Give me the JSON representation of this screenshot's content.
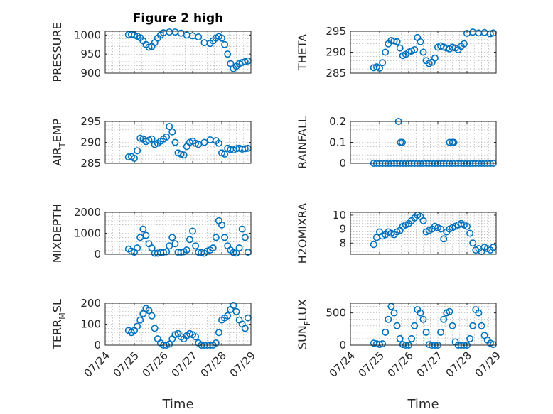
{
  "figure": {
    "title": "Figure 2 high",
    "x_label": "Time",
    "x_ticks": [
      "07/24",
      "07/25",
      "07/26",
      "07/27",
      "07/28",
      "07/29"
    ],
    "marker_color": "#0072BD"
  },
  "chart_data": [
    {
      "type": "scatter",
      "title": "Figure 2 high",
      "ylabel": "PRESSURE",
      "xlabel": "",
      "ylim": [
        900,
        1010
      ],
      "yticks": [
        900,
        950,
        1000
      ],
      "grid": true,
      "x_days": [
        0.8,
        0.9,
        1.0,
        1.1,
        1.2,
        1.3,
        1.4,
        1.5,
        1.6,
        1.7,
        1.8,
        1.9,
        2.0,
        2.2,
        2.4,
        2.6,
        2.8,
        3.0,
        3.2,
        3.4,
        3.6,
        3.7,
        3.8,
        3.9,
        4.0,
        4.1,
        4.2,
        4.3,
        4.4,
        4.5,
        4.6,
        4.7,
        4.8,
        4.9
      ],
      "y": [
        1001,
        1001,
        1000,
        997,
        993,
        985,
        975,
        968,
        970,
        980,
        992,
        1000,
        1006,
        1008,
        1008,
        1005,
        1000,
        998,
        995,
        980,
        978,
        985,
        992,
        996,
        992,
        975,
        950,
        925,
        912,
        918,
        925,
        928,
        930,
        932
      ]
    },
    {
      "type": "scatter",
      "ylabel": "THETA",
      "xlabel": "",
      "ylim": [
        285,
        295
      ],
      "yticks": [
        285,
        290,
        295
      ],
      "grid": true,
      "x_days": [
        0.8,
        0.9,
        1.0,
        1.1,
        1.2,
        1.3,
        1.4,
        1.5,
        1.6,
        1.7,
        1.8,
        1.9,
        2.0,
        2.1,
        2.2,
        2.3,
        2.4,
        2.5,
        2.6,
        2.7,
        2.8,
        2.9,
        3.0,
        3.1,
        3.2,
        3.3,
        3.4,
        3.5,
        3.6,
        3.7,
        3.8,
        3.9,
        4.0,
        4.2,
        4.4,
        4.6,
        4.8,
        4.9
      ],
      "y": [
        286.3,
        286.5,
        286.2,
        287.5,
        290.0,
        292.0,
        292.8,
        292.7,
        292.5,
        291.0,
        289.2,
        289.5,
        290.0,
        290.3,
        290.6,
        293.5,
        292.5,
        290.0,
        288.0,
        287.3,
        287.6,
        288.6,
        291.2,
        291.5,
        291.2,
        291.0,
        290.8,
        291.2,
        291.0,
        290.6,
        291.4,
        292.0,
        294.5,
        294.8,
        294.6,
        294.7,
        294.4,
        294.6
      ]
    },
    {
      "type": "scatter",
      "ylabel": "AIR_TEMP",
      "xlabel": "",
      "ylim": [
        285,
        295
      ],
      "yticks": [
        285,
        290,
        295
      ],
      "grid": true,
      "x_days": [
        0.8,
        0.9,
        1.0,
        1.1,
        1.2,
        1.3,
        1.4,
        1.5,
        1.6,
        1.7,
        1.8,
        1.9,
        2.0,
        2.1,
        2.2,
        2.3,
        2.4,
        2.5,
        2.6,
        2.7,
        2.8,
        2.9,
        3.0,
        3.1,
        3.2,
        3.4,
        3.6,
        3.8,
        3.9,
        4.0,
        4.1,
        4.2,
        4.3,
        4.4,
        4.5,
        4.6,
        4.7,
        4.8,
        4.9
      ],
      "y": [
        286.5,
        286.6,
        286.2,
        288.0,
        291.0,
        290.8,
        290.2,
        290.5,
        290.8,
        289.5,
        289.8,
        290.3,
        290.8,
        291.3,
        293.8,
        292.5,
        290.0,
        287.5,
        287.2,
        287.0,
        289.0,
        290.0,
        290.3,
        289.8,
        289.5,
        290.0,
        290.6,
        290.4,
        289.8,
        287.5,
        287.2,
        288.6,
        288.3,
        288.2,
        288.5,
        288.6,
        288.4,
        288.5,
        288.6
      ]
    },
    {
      "type": "scatter",
      "ylabel": "RAINFALL",
      "xlabel": "",
      "ylim": [
        0,
        0.2
      ],
      "yticks": [
        0,
        0.1,
        0.2
      ],
      "grid": true,
      "x_days": [
        0.8,
        0.9,
        1.0,
        1.1,
        1.2,
        1.3,
        1.4,
        1.5,
        1.6,
        1.7,
        1.8,
        1.9,
        2.0,
        2.1,
        2.2,
        2.3,
        2.4,
        2.5,
        2.6,
        2.7,
        2.8,
        2.9,
        3.0,
        3.1,
        3.2,
        3.3,
        3.4,
        3.5,
        3.6,
        3.7,
        3.8,
        3.9,
        4.0,
        4.1,
        4.2,
        4.3,
        4.4,
        4.5,
        4.6,
        4.7,
        4.8,
        4.9,
        1.65,
        1.72,
        1.78,
        3.4,
        3.5,
        3.55
      ],
      "y": [
        0,
        0,
        0,
        0,
        0,
        0,
        0,
        0,
        0,
        0,
        0,
        0,
        0,
        0,
        0,
        0,
        0,
        0,
        0,
        0,
        0,
        0,
        0,
        0,
        0,
        0,
        0,
        0,
        0,
        0,
        0,
        0,
        0,
        0,
        0,
        0,
        0,
        0,
        0,
        0,
        0,
        0,
        0.2,
        0.1,
        0.1,
        0.1,
        0.1,
        0.1
      ]
    },
    {
      "type": "scatter",
      "ylabel": "MIXDEPTH",
      "xlabel": "",
      "ylim": [
        0,
        2000
      ],
      "yticks": [
        0,
        1000,
        2000
      ],
      "grid": true,
      "x_days": [
        0.8,
        0.9,
        1.0,
        1.1,
        1.2,
        1.3,
        1.4,
        1.5,
        1.6,
        1.7,
        1.8,
        1.9,
        2.0,
        2.1,
        2.2,
        2.3,
        2.4,
        2.5,
        2.6,
        2.7,
        2.8,
        2.9,
        3.0,
        3.1,
        3.2,
        3.3,
        3.4,
        3.5,
        3.6,
        3.7,
        3.8,
        3.9,
        4.0,
        4.1,
        4.2,
        4.3,
        4.4,
        4.5,
        4.6,
        4.7,
        4.8,
        4.9
      ],
      "y": [
        250,
        150,
        100,
        300,
        800,
        1200,
        900,
        500,
        300,
        50,
        50,
        80,
        100,
        120,
        400,
        800,
        500,
        100,
        100,
        120,
        200,
        700,
        1100,
        400,
        100,
        80,
        50,
        150,
        200,
        300,
        800,
        1600,
        1400,
        800,
        400,
        200,
        80,
        60,
        300,
        1200,
        800,
        100
      ]
    },
    {
      "type": "scatter",
      "ylabel": "H2OMIXRA",
      "xlabel": "",
      "ylim": [
        7.2,
        10.2
      ],
      "yticks": [
        8,
        9,
        10
      ],
      "grid": true,
      "x_days": [
        0.8,
        0.9,
        1.0,
        1.1,
        1.2,
        1.3,
        1.4,
        1.5,
        1.6,
        1.7,
        1.8,
        1.9,
        2.0,
        2.1,
        2.2,
        2.3,
        2.4,
        2.5,
        2.6,
        2.7,
        2.8,
        2.9,
        3.0,
        3.1,
        3.2,
        3.3,
        3.4,
        3.5,
        3.6,
        3.7,
        3.8,
        3.9,
        4.0,
        4.1,
        4.2,
        4.3,
        4.4,
        4.5,
        4.6,
        4.7,
        4.8,
        4.9
      ],
      "y": [
        7.9,
        8.4,
        8.8,
        8.5,
        8.6,
        8.8,
        8.7,
        8.6,
        8.8,
        8.9,
        9.2,
        9.3,
        9.4,
        9.6,
        9.8,
        10.0,
        9.9,
        9.6,
        8.8,
        8.9,
        9.0,
        9.2,
        9.1,
        9.0,
        8.3,
        8.8,
        9.0,
        9.1,
        9.2,
        9.3,
        9.4,
        9.3,
        9.2,
        8.7,
        8.0,
        7.5,
        7.6,
        7.4,
        7.7,
        7.6,
        7.5,
        7.7
      ]
    },
    {
      "type": "scatter",
      "ylabel": "TERR_MSL",
      "xlabel": "Time",
      "ylim": [
        0,
        200
      ],
      "yticks": [
        0,
        100,
        200
      ],
      "grid": true,
      "x_days": [
        0.8,
        0.9,
        1.0,
        1.1,
        1.2,
        1.3,
        1.4,
        1.5,
        1.6,
        1.7,
        1.8,
        1.9,
        2.0,
        2.1,
        2.2,
        2.3,
        2.4,
        2.5,
        2.6,
        2.7,
        2.8,
        2.9,
        3.0,
        3.1,
        3.2,
        3.3,
        3.4,
        3.5,
        3.6,
        3.7,
        3.8,
        3.9,
        4.0,
        4.1,
        4.2,
        4.3,
        4.4,
        4.5,
        4.6,
        4.7,
        4.8,
        4.9
      ],
      "y": [
        70,
        60,
        70,
        90,
        120,
        150,
        175,
        165,
        140,
        80,
        30,
        10,
        0,
        0,
        5,
        30,
        50,
        55,
        40,
        30,
        45,
        55,
        50,
        40,
        10,
        0,
        0,
        0,
        0,
        0,
        10,
        60,
        120,
        130,
        140,
        170,
        190,
        160,
        120,
        100,
        80,
        130
      ]
    },
    {
      "type": "scatter",
      "ylabel": "SUN_FLUX",
      "xlabel": "Time",
      "ylim": [
        0,
        650
      ],
      "yticks": [
        0,
        500
      ],
      "grid": true,
      "x_days": [
        0.8,
        0.9,
        1.0,
        1.1,
        1.2,
        1.3,
        1.4,
        1.5,
        1.6,
        1.7,
        1.8,
        1.9,
        2.0,
        2.1,
        2.2,
        2.3,
        2.4,
        2.5,
        2.6,
        2.7,
        2.8,
        2.9,
        3.0,
        3.1,
        3.2,
        3.3,
        3.4,
        3.5,
        3.6,
        3.7,
        3.8,
        3.9,
        4.0,
        4.1,
        4.2,
        4.3,
        4.4,
        4.5,
        4.6,
        4.7,
        4.8,
        4.9
      ],
      "y": [
        30,
        20,
        10,
        20,
        200,
        400,
        600,
        500,
        300,
        100,
        10,
        0,
        0,
        100,
        300,
        550,
        500,
        400,
        200,
        10,
        0,
        0,
        0,
        200,
        400,
        500,
        520,
        300,
        50,
        0,
        0,
        0,
        0,
        100,
        300,
        550,
        500,
        300,
        150,
        80,
        30,
        10
      ]
    }
  ]
}
